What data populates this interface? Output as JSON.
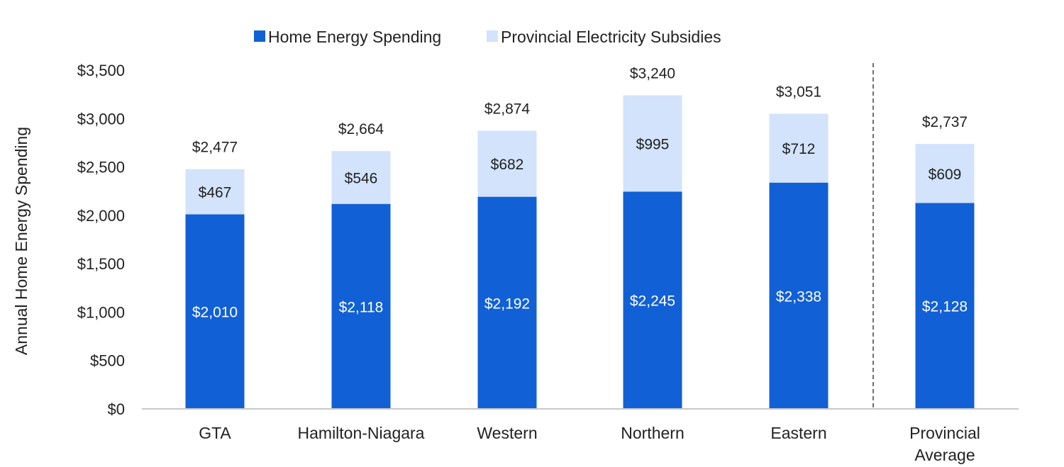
{
  "chart_data": {
    "type": "bar",
    "stacked": true,
    "categories": [
      "GTA",
      "Hamilton-Niagara",
      "Western",
      "Northern",
      "Eastern",
      "Provincial Average"
    ],
    "series": [
      {
        "name": "Home Energy Spending",
        "values": [
          2010,
          2118,
          2192,
          2245,
          2338,
          2128
        ],
        "color": "#1160d6",
        "labels": [
          "$2,010",
          "$2,118",
          "$2,192",
          "$2,245",
          "$2,338",
          "$2,128"
        ]
      },
      {
        "name": "Provincial Electricity Subsidies",
        "values": [
          467,
          546,
          682,
          995,
          712,
          609
        ],
        "color": "#d2e3fb",
        "labels": [
          "$467",
          "$546",
          "$682",
          "$995",
          "$712",
          "$609"
        ]
      }
    ],
    "totals": [
      2477,
      2664,
      2874,
      3240,
      3051,
      2737
    ],
    "total_labels": [
      "$2,477",
      "$2,664",
      "$2,874",
      "$3,240",
      "$3,051",
      "$2,737"
    ],
    "ylabel": "Annual Home Energy Spending",
    "xlabel": "",
    "ylim": [
      0,
      3500
    ],
    "yticks": [
      0,
      500,
      1000,
      1500,
      2000,
      2500,
      3000,
      3500
    ],
    "ytick_labels": [
      "$0",
      "$500",
      "$1,000",
      "$1,500",
      "$2,000",
      "$2,500",
      "$3,000",
      "$3,500"
    ],
    "grid": false,
    "legend": "top",
    "separator_before_category": "Provincial Average"
  }
}
